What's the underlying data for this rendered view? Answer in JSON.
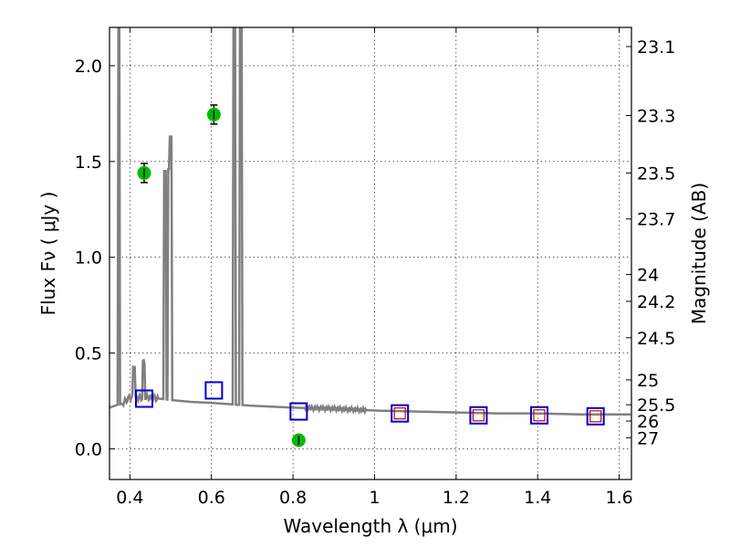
{
  "chart_data": {
    "type": "scatter",
    "xlabel": "Wavelength  λ (μm)",
    "ylabel": "Flux  Fν ( μJy )",
    "ylabel_right": "Magnitude (AB)",
    "xlim": [
      0.35,
      1.63
    ],
    "ylim": [
      -0.16,
      2.2
    ],
    "grid": true,
    "x_ticks": [
      0.4,
      0.6,
      0.8,
      1.0,
      1.2,
      1.4,
      1.6
    ],
    "x_tick_labels": [
      "0.4",
      "0.6",
      "0.8",
      "1",
      "1.2",
      "1.4",
      "1.6"
    ],
    "y_ticks": [
      0.0,
      0.5,
      1.0,
      1.5,
      2.0
    ],
    "y_tick_labels": [
      "0.0",
      "0.5",
      "1.0",
      "1.5",
      "2.0"
    ],
    "right_ticks": [
      {
        "flux": 2.1,
        "label": "23.1"
      },
      {
        "flux": 1.74,
        "label": "23.3"
      },
      {
        "flux": 1.44,
        "label": "23.5"
      },
      {
        "flux": 1.2,
        "label": "23.7"
      },
      {
        "flux": 0.91,
        "label": "24"
      },
      {
        "flux": 0.77,
        "label": "24.2"
      },
      {
        "flux": 0.58,
        "label": "24.5"
      },
      {
        "flux": 0.36,
        "label": "25"
      },
      {
        "flux": 0.23,
        "label": "25.5"
      },
      {
        "flux": 0.145,
        "label": "26"
      },
      {
        "flux": 0.058,
        "label": "27"
      }
    ],
    "series": [
      {
        "kind": "model_spectrum",
        "color": "#808080",
        "continuum": [
          [
            0.35,
            0.215
          ],
          [
            0.37,
            0.23
          ],
          [
            0.38,
            0.235
          ],
          [
            0.4,
            0.27
          ],
          [
            0.42,
            0.265
          ],
          [
            0.44,
            0.27
          ],
          [
            0.46,
            0.265
          ],
          [
            0.5,
            0.255
          ],
          [
            0.55,
            0.245
          ],
          [
            0.6,
            0.24
          ],
          [
            0.7,
            0.225
          ],
          [
            0.8,
            0.215
          ],
          [
            0.9,
            0.21
          ],
          [
            1.0,
            0.2
          ],
          [
            1.1,
            0.195
          ],
          [
            1.2,
            0.19
          ],
          [
            1.3,
            0.185
          ],
          [
            1.4,
            0.185
          ],
          [
            1.5,
            0.18
          ],
          [
            1.63,
            0.18
          ]
        ],
        "emission_lines": [
          {
            "x": 0.373,
            "peak": 2.3
          },
          {
            "x": 0.41,
            "peak": 0.43
          },
          {
            "x": 0.434,
            "peak": 0.45
          },
          {
            "x": 0.486,
            "peak": 1.45
          },
          {
            "x": 0.496,
            "peak": 1.46
          },
          {
            "x": 0.501,
            "peak": 1.63
          },
          {
            "x": 0.656,
            "peak": 2.3
          },
          {
            "x": 0.672,
            "peak": 2.3
          }
        ]
      },
      {
        "kind": "observed",
        "color": "#00bb00",
        "points": [
          {
            "x": 0.435,
            "y": 1.44,
            "err": 0.05
          },
          {
            "x": 0.606,
            "y": 1.745,
            "err": 0.05
          },
          {
            "x": 0.814,
            "y": 0.045,
            "err": 0.02
          }
        ]
      },
      {
        "kind": "model_photometry",
        "color": "#0000cc",
        "points": [
          {
            "x": 0.435,
            "y": 0.262
          },
          {
            "x": 0.606,
            "y": 0.305
          },
          {
            "x": 0.814,
            "y": 0.195
          },
          {
            "x": 1.062,
            "y": 0.185
          },
          {
            "x": 1.255,
            "y": 0.175
          },
          {
            "x": 1.404,
            "y": 0.175
          },
          {
            "x": 1.542,
            "y": 0.17
          }
        ]
      },
      {
        "kind": "model_photometry_inner",
        "color": "#cc0000",
        "points": [
          {
            "x": 1.062,
            "y": 0.185
          },
          {
            "x": 1.255,
            "y": 0.175
          },
          {
            "x": 1.404,
            "y": 0.175
          },
          {
            "x": 1.542,
            "y": 0.17
          }
        ]
      }
    ]
  }
}
